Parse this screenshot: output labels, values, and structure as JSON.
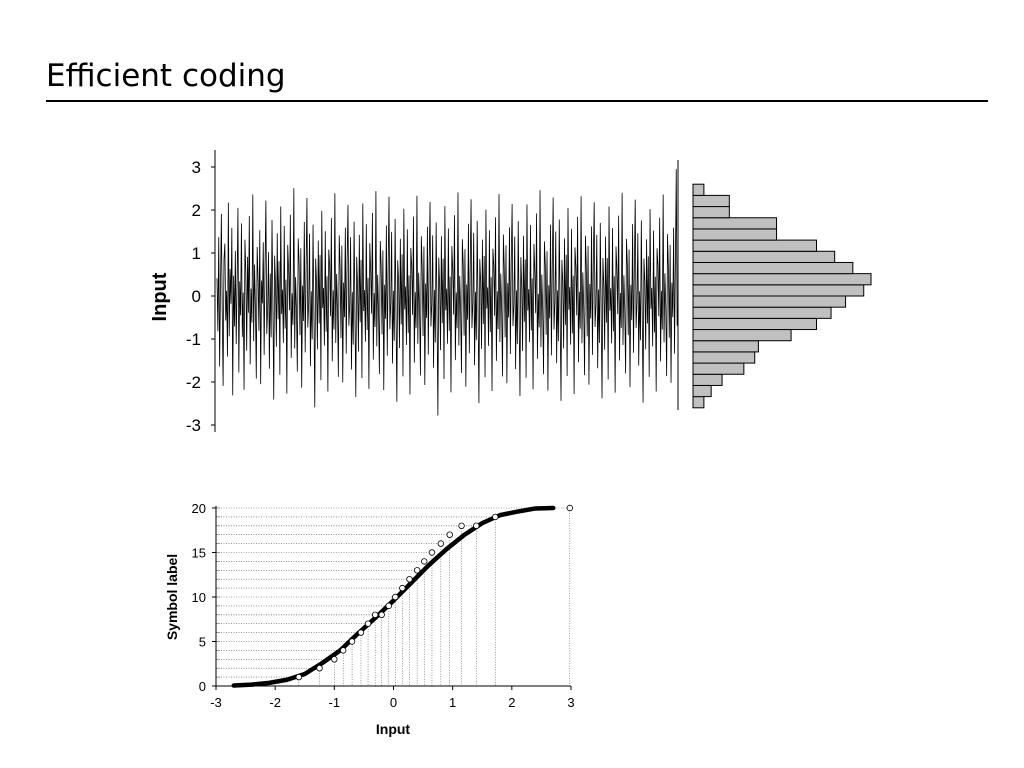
{
  "slide": {
    "title": "Efficient coding"
  },
  "chart_data": [
    {
      "type": "line",
      "ylabel": "Input",
      "ylim": [
        -3.15,
        3.15
      ],
      "yticks": [
        "-3",
        "-2",
        "-1",
        "0",
        "1",
        "2",
        "3"
      ],
      "n_samples": 500,
      "values": [
        0.41,
        -0.82,
        1.37,
        -1.64,
        0.22,
        1.91,
        -0.36,
        -2.09,
        0.85,
        1.22,
        -0.57,
        0.12,
        -1.41,
        2.17,
        -0.94,
        0.63,
        -0.18,
        1.58,
        -2.31,
        0.47,
        -0.71,
        1.05,
        -1.12,
        0.29,
        2.05,
        -1.78,
        0.34,
        -0.45,
        1.69,
        -0.95,
        0.08,
        -2.18,
        1.31,
        0.56,
        -1.27,
        0.91,
        -0.39,
        1.86,
        -1.59,
        0.17,
        -0.62,
        2.36,
        -1.05,
        0.73,
        -0.24,
        -1.92,
        1.14,
        0.43,
        -0.81,
        1.53,
        -2.05,
        0.36,
        -0.17,
        1.25,
        -1.37,
        0.69,
        2.22,
        -0.88,
        -0.31,
        1.02,
        -1.69,
        0.52,
        -0.96,
        1.77,
        -0.13,
        -2.41,
        0.94,
        0.27,
        -1.18,
        1.46,
        -0.54,
        0.81,
        -1.83,
        2.08,
        -0.42,
        0.15,
        -1.09,
        1.63,
        -0.76,
        0.38,
        -2.27,
        1.19,
        0.61,
        -0.33,
        1.89,
        -1.44,
        0.06,
        -0.67,
        2.51,
        -1.22,
        0.44,
        -0.29,
        -1.76,
        1.34,
        0.79,
        -0.91,
        1.11,
        -2.13,
        0.24,
        -0.58,
        1.72,
        -1.31,
        0.57,
        2.28,
        -0.73,
        -0.19,
        1.45,
        -1.63,
        0.11,
        -1.01,
        1.66,
        -0.37,
        -2.59,
        0.87,
        0.32,
        -1.24,
        1.29,
        -0.64,
        0.95,
        -1.96,
        1.98,
        -0.28,
        0.19,
        -1.15,
        1.51,
        -0.83,
        0.46,
        -2.22,
        1.08,
        0.72,
        -0.47,
        1.81,
        -1.52,
        0.13,
        -0.78,
        2.39,
        -1.09,
        0.51,
        -0.26,
        -1.88,
        1.41,
        0.64,
        -0.98,
        1.17,
        -2.01,
        0.31,
        -0.49,
        1.59,
        -1.34,
        0.77,
        2.12,
        -0.69,
        -0.23,
        1.37,
        -1.71,
        0.09,
        -1.13,
        1.73,
        -0.44,
        -2.35,
        0.91,
        0.21,
        -1.29,
        1.42,
        -0.61,
        0.84,
        -1.91,
        2.15,
        -0.35,
        0.14,
        -1.06,
        1.67,
        -0.79,
        0.42,
        -2.16,
        1.23,
        0.58,
        -0.41,
        1.93,
        -1.48,
        0.07,
        -0.72,
        2.44,
        -1.17,
        0.49,
        -0.32,
        -1.81,
        1.28,
        0.71,
        -0.89,
        1.06,
        -2.19,
        0.26,
        -0.53,
        1.64,
        -1.39,
        0.66,
        2.31,
        -0.77,
        -0.16,
        1.49,
        -1.57,
        0.12,
        -1.04,
        1.79,
        -0.38,
        -2.46,
        0.83,
        0.35,
        -1.21,
        1.33,
        -0.66,
        0.97,
        -1.87,
        2.03,
        -0.31,
        0.22,
        -1.14,
        1.55,
        -0.86,
        0.48,
        -2.29,
        1.12,
        0.69,
        -0.44,
        1.85,
        -1.55,
        0.09,
        -0.74,
        2.33,
        -1.11,
        0.54,
        -0.27,
        -1.85,
        1.39,
        0.67,
        -0.93,
        1.15,
        -2.07,
        0.29,
        -0.51,
        1.61,
        -1.36,
        0.74,
        2.19,
        -0.71,
        -0.21,
        1.41,
        -1.67,
        0.14,
        -1.08,
        1.71,
        -0.41,
        -2.78,
        0.89,
        0.25,
        -1.26,
        1.39,
        -0.63,
        0.87,
        -1.93,
        2.09,
        -0.33,
        0.17,
        -1.11,
        1.57,
        -0.81,
        0.45,
        -2.24,
        1.16,
        0.63,
        -0.43,
        1.88,
        -1.49,
        0.08,
        -0.75,
        2.41,
        -1.15,
        0.47,
        -0.3,
        -1.79,
        1.32,
        0.73,
        -0.92,
        1.09,
        -2.11,
        0.27,
        -0.55,
        1.68,
        -1.33,
        0.61,
        2.25,
        -0.75,
        -0.18,
        1.47,
        -1.61,
        0.1,
        -1.02,
        1.75,
        -0.36,
        -2.49,
        0.86,
        0.33,
        -1.23,
        1.31,
        -0.65,
        0.93,
        -1.89,
        2.01,
        -0.29,
        0.2,
        -1.16,
        1.53,
        -0.84,
        0.44,
        -2.21,
        1.1,
        0.7,
        -0.46,
        1.83,
        -1.51,
        0.11,
        -0.77,
        2.37,
        -1.07,
        0.52,
        -0.28,
        -1.87,
        1.43,
        0.65,
        -0.96,
        1.18,
        -2.03,
        0.3,
        -0.5,
        1.6,
        -1.35,
        0.76,
        2.14,
        -0.7,
        -0.22,
        1.38,
        -1.7,
        0.13,
        -1.12,
        1.74,
        -0.43,
        -2.33,
        0.9,
        0.23,
        -1.28,
        1.4,
        -0.6,
        0.85,
        -1.9,
        2.13,
        -0.34,
        0.16,
        -1.07,
        1.65,
        -0.8,
        0.41,
        -2.17,
        1.21,
        0.59,
        -0.4,
        1.92,
        -1.46,
        0.05,
        -0.73,
        2.46,
        -1.19,
        0.5,
        -0.31,
        -1.82,
        1.27,
        0.72,
        -0.9,
        1.04,
        -2.2,
        0.25,
        -0.52,
        1.66,
        -1.38,
        0.67,
        2.29,
        -0.78,
        -0.15,
        1.5,
        -1.56,
        0.13,
        -1.05,
        1.78,
        -0.39,
        -2.44,
        0.84,
        0.34,
        -1.22,
        1.34,
        -0.67,
        0.96,
        -1.86,
        2.05,
        -0.32,
        0.21,
        -1.13,
        1.56,
        -0.87,
        0.47,
        -2.28,
        1.13,
        0.68,
        -0.45,
        1.84,
        -1.54,
        0.1,
        -0.76,
        2.32,
        -1.1,
        0.55,
        -0.26,
        -1.84,
        1.4,
        0.66,
        -0.94,
        1.16,
        -2.06,
        0.28,
        -0.52,
        1.62,
        -1.37,
        0.75,
        2.18,
        -0.72,
        -0.2,
        1.42,
        -1.68,
        0.15,
        -1.09,
        1.7,
        -0.42,
        -2.38,
        0.88,
        0.26,
        -1.25,
        1.38,
        -0.62,
        0.88,
        -1.94,
        2.08,
        -0.34,
        0.18,
        -1.1,
        1.58,
        -0.82,
        0.46,
        -2.25,
        1.15,
        0.62,
        -0.42,
        1.87,
        -1.5,
        0.07,
        -0.74,
        2.4,
        -1.14,
        0.48,
        -0.29,
        -1.8,
        1.33,
        0.72,
        -0.91,
        1.08,
        -2.12,
        0.26,
        -0.56,
        1.67,
        -1.32,
        0.62,
        2.24,
        -0.74,
        -0.17,
        1.46,
        -1.62,
        0.11,
        -1.03,
        1.76,
        -0.37,
        -2.48,
        0.87,
        0.32,
        -1.24,
        1.32,
        -0.64,
        0.92,
        -1.88,
        2.02,
        -0.3,
        0.19,
        -1.17,
        1.52,
        -0.85,
        0.45,
        -2.22,
        1.11,
        0.71,
        -0.47,
        1.82,
        -1.52,
        0.12,
        -0.78,
        2.36,
        -1.08,
        0.53,
        -0.27,
        -1.86,
        1.44,
        0.64,
        -0.97,
        1.19,
        -2.02,
        0.31,
        -0.49,
        1.59,
        -1.34,
        0.77,
        2.95,
        -0.69,
        -0.23
      ]
    },
    {
      "type": "bar",
      "orientation": "horizontal",
      "bins_from": -2.6,
      "bins_to": 2.6,
      "bin_count": 20,
      "counts": [
        3,
        5,
        8,
        14,
        17,
        18,
        27,
        34,
        38,
        42,
        47,
        49,
        44,
        39,
        34,
        23,
        23,
        10,
        10,
        3
      ]
    },
    {
      "type": "line",
      "xlabel": "Input",
      "ylabel": "Symbol label",
      "xlim": [
        -3,
        3
      ],
      "ylim": [
        0,
        20
      ],
      "xticks": [
        "-3",
        "-2",
        "-1",
        "0",
        "1",
        "2",
        "3"
      ],
      "yticks": [
        "0",
        "5",
        "10",
        "15",
        "20"
      ],
      "curve_x": [
        -2.7,
        -2.4,
        -2.1,
        -1.8,
        -1.5,
        -1.2,
        -0.9,
        -0.6,
        -0.3,
        0.0,
        0.3,
        0.6,
        0.9,
        1.2,
        1.5,
        1.8,
        2.1,
        2.4,
        2.7
      ],
      "curve_y": [
        0.05,
        0.15,
        0.35,
        0.7,
        1.35,
        2.6,
        4.0,
        5.9,
        7.7,
        9.6,
        11.6,
        13.6,
        15.4,
        17.0,
        18.3,
        19.2,
        19.6,
        19.95,
        20.0
      ],
      "markers_x": [
        -1.6,
        -1.25,
        -1.0,
        -0.85,
        -0.7,
        -0.55,
        -0.43,
        -0.31,
        -0.2,
        -0.08,
        0.03,
        0.15,
        0.27,
        0.4,
        0.52,
        0.65,
        0.8,
        0.95,
        1.15,
        1.4,
        1.72,
        2.98
      ],
      "markers_y": [
        1,
        2,
        3,
        4,
        5,
        6,
        7,
        8,
        8,
        9,
        10,
        11,
        12,
        13,
        14,
        15,
        16,
        17,
        18,
        18,
        19,
        20
      ]
    }
  ]
}
